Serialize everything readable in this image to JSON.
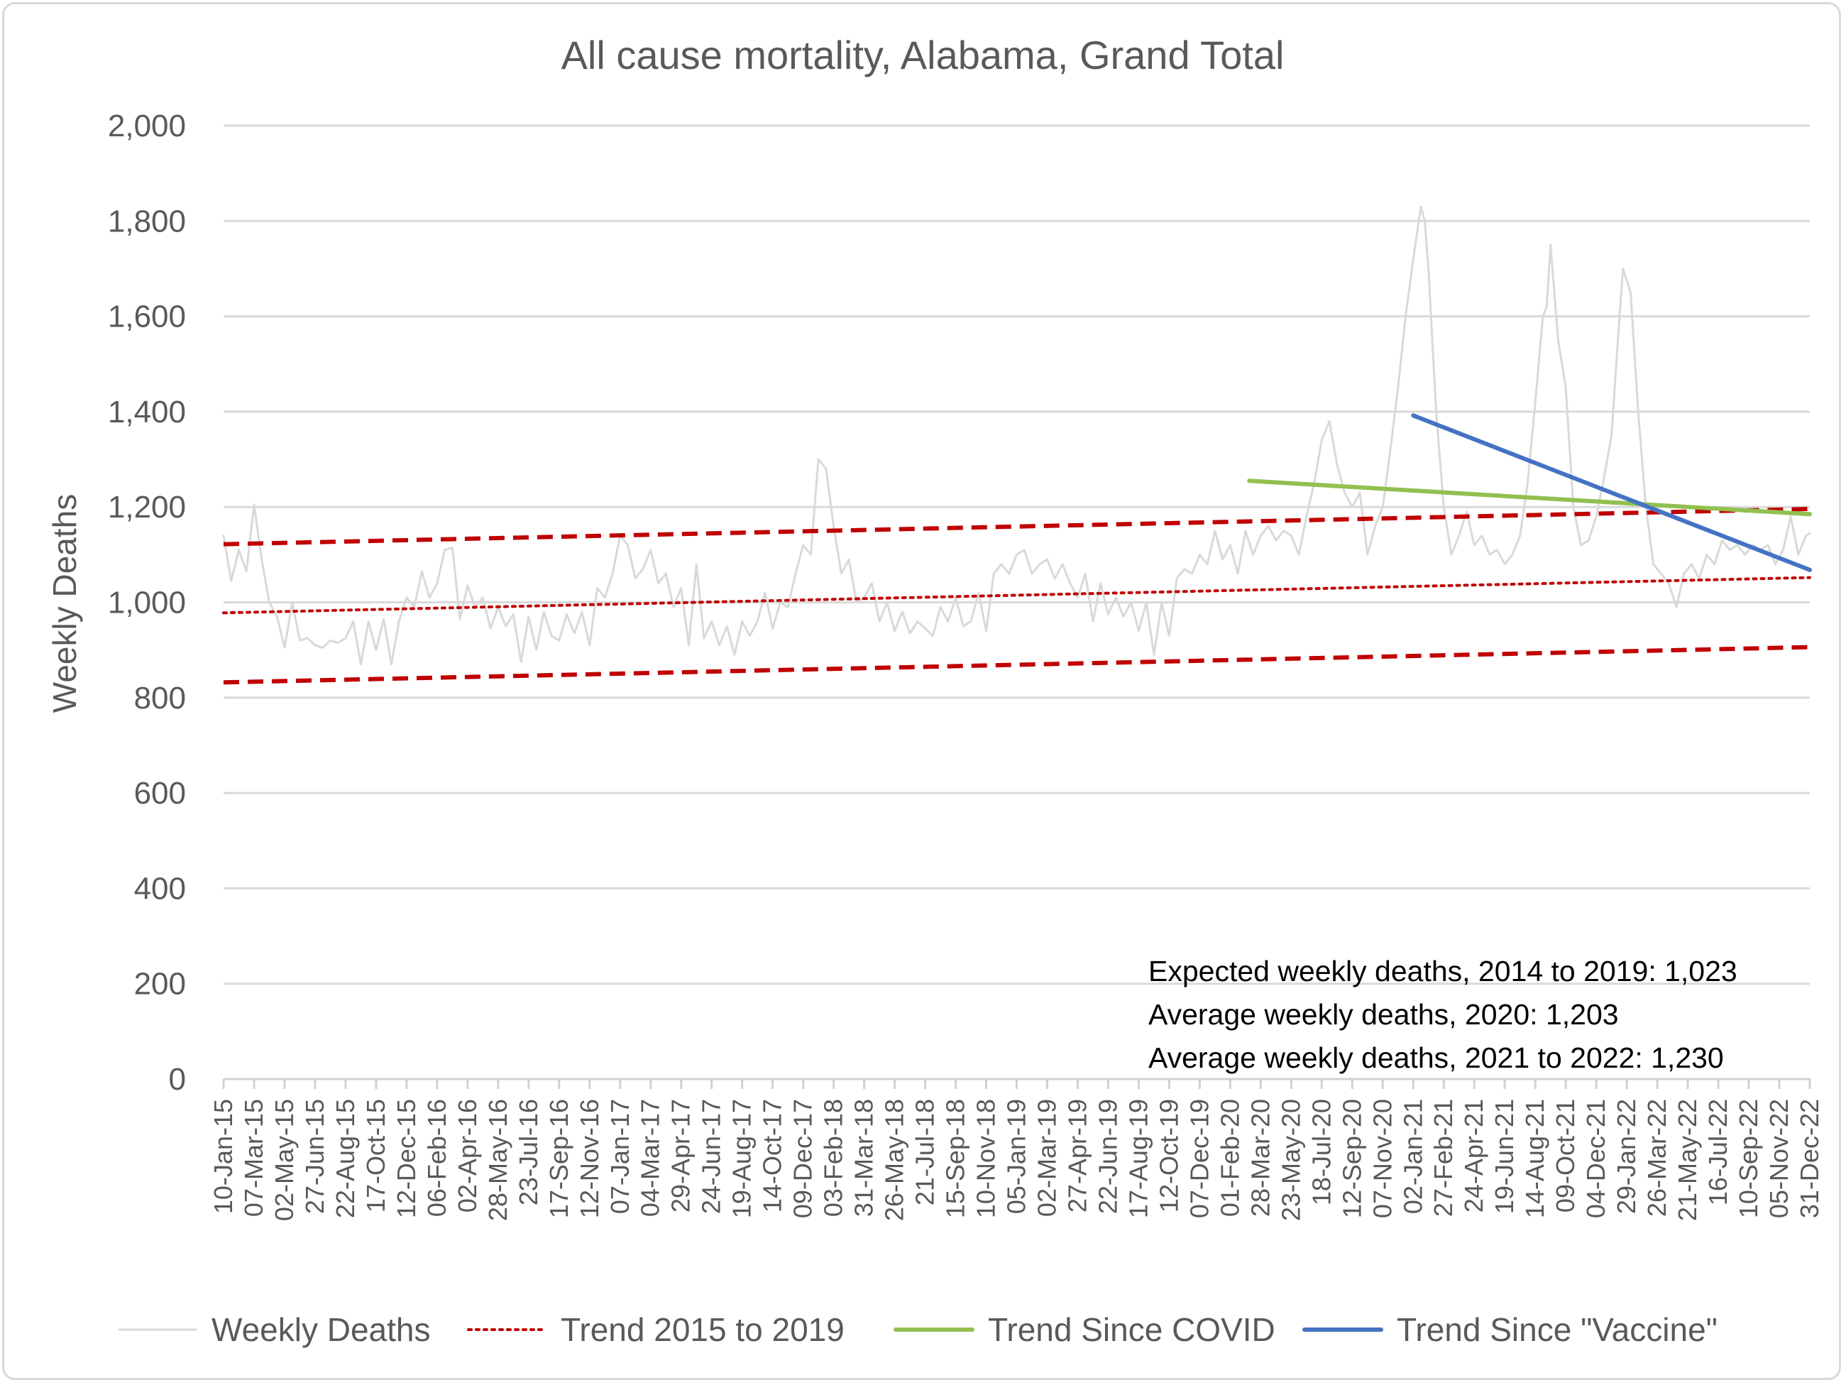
{
  "chart_data": {
    "type": "line",
    "title": "All cause mortality, Alabama, Grand Total",
    "xlabel": "",
    "ylabel": "Weekly Deaths",
    "ylim": [
      0,
      2000
    ],
    "y_ticks": [
      "0",
      "200",
      "400",
      "600",
      "800",
      "1,000",
      "1,200",
      "1,400",
      "1,600",
      "1,800",
      "2,000"
    ],
    "y_tick_values": [
      0,
      200,
      400,
      600,
      800,
      1000,
      1200,
      1400,
      1600,
      1800,
      2000
    ],
    "x_start": "2015-01-10",
    "x_end": "2022-12-31",
    "x_tick_labels": [
      "10-Jan-15",
      "07-Mar-15",
      "02-May-15",
      "27-Jun-15",
      "22-Aug-15",
      "17-Oct-15",
      "12-Dec-15",
      "06-Feb-16",
      "02-Apr-16",
      "28-May-16",
      "23-Jul-16",
      "17-Sep-16",
      "12-Nov-16",
      "07-Jan-17",
      "04-Mar-17",
      "29-Apr-17",
      "24-Jun-17",
      "19-Aug-17",
      "14-Oct-17",
      "09-Dec-17",
      "03-Feb-18",
      "31-Mar-18",
      "26-May-18",
      "21-Jul-18",
      "15-Sep-18",
      "10-Nov-18",
      "05-Jan-19",
      "02-Mar-19",
      "27-Apr-19",
      "22-Jun-19",
      "17-Aug-19",
      "12-Oct-19",
      "07-Dec-19",
      "01-Feb-20",
      "28-Mar-20",
      "23-May-20",
      "18-Jul-20",
      "12-Sep-20",
      "07-Nov-20",
      "02-Jan-21",
      "27-Feb-21",
      "24-Apr-21",
      "19-Jun-21",
      "14-Aug-21",
      "09-Oct-21",
      "04-Dec-21",
      "29-Jan-22",
      "26-Mar-22",
      "21-May-22",
      "16-Jul-22",
      "10-Sep-22",
      "05-Nov-22",
      "31-Dec-22"
    ],
    "grid": true,
    "legend_position": "bottom",
    "series": [
      {
        "name": "Weekly Deaths",
        "color": "#d9d9d9",
        "style": "solid",
        "points": [
          [
            "2015-01-10",
            1140
          ],
          [
            "2015-01-24",
            1045
          ],
          [
            "2015-02-07",
            1110
          ],
          [
            "2015-02-21",
            1065
          ],
          [
            "2015-03-07",
            1205
          ],
          [
            "2015-03-21",
            1090
          ],
          [
            "2015-04-04",
            1000
          ],
          [
            "2015-04-18",
            970
          ],
          [
            "2015-05-02",
            905
          ],
          [
            "2015-05-16",
            1000
          ],
          [
            "2015-05-30",
            920
          ],
          [
            "2015-06-13",
            925
          ],
          [
            "2015-06-27",
            910
          ],
          [
            "2015-07-11",
            905
          ],
          [
            "2015-07-25",
            920
          ],
          [
            "2015-08-08",
            915
          ],
          [
            "2015-08-22",
            925
          ],
          [
            "2015-09-05",
            960
          ],
          [
            "2015-09-19",
            870
          ],
          [
            "2015-10-03",
            960
          ],
          [
            "2015-10-17",
            900
          ],
          [
            "2015-10-31",
            965
          ],
          [
            "2015-11-14",
            870
          ],
          [
            "2015-11-28",
            960
          ],
          [
            "2015-12-12",
            1010
          ],
          [
            "2015-12-26",
            990
          ],
          [
            "2016-01-09",
            1065
          ],
          [
            "2016-01-23",
            1010
          ],
          [
            "2016-02-06",
            1040
          ],
          [
            "2016-02-20",
            1110
          ],
          [
            "2016-03-05",
            1115
          ],
          [
            "2016-03-19",
            965
          ],
          [
            "2016-04-02",
            1035
          ],
          [
            "2016-04-16",
            990
          ],
          [
            "2016-04-30",
            1010
          ],
          [
            "2016-05-14",
            945
          ],
          [
            "2016-05-28",
            990
          ],
          [
            "2016-06-11",
            950
          ],
          [
            "2016-06-25",
            975
          ],
          [
            "2016-07-09",
            875
          ],
          [
            "2016-07-23",
            970
          ],
          [
            "2016-08-06",
            900
          ],
          [
            "2016-08-20",
            980
          ],
          [
            "2016-09-03",
            930
          ],
          [
            "2016-09-17",
            920
          ],
          [
            "2016-10-01",
            975
          ],
          [
            "2016-10-15",
            935
          ],
          [
            "2016-10-29",
            980
          ],
          [
            "2016-11-12",
            910
          ],
          [
            "2016-11-26",
            1030
          ],
          [
            "2016-12-10",
            1010
          ],
          [
            "2016-12-24",
            1060
          ],
          [
            "2017-01-07",
            1140
          ],
          [
            "2017-01-21",
            1120
          ],
          [
            "2017-02-04",
            1050
          ],
          [
            "2017-02-18",
            1070
          ],
          [
            "2017-03-04",
            1110
          ],
          [
            "2017-03-18",
            1040
          ],
          [
            "2017-04-01",
            1060
          ],
          [
            "2017-04-15",
            990
          ],
          [
            "2017-04-29",
            1030
          ],
          [
            "2017-05-13",
            910
          ],
          [
            "2017-05-27",
            1080
          ],
          [
            "2017-06-10",
            925
          ],
          [
            "2017-06-24",
            960
          ],
          [
            "2017-07-08",
            910
          ],
          [
            "2017-07-22",
            950
          ],
          [
            "2017-08-05",
            890
          ],
          [
            "2017-08-19",
            960
          ],
          [
            "2017-09-02",
            930
          ],
          [
            "2017-09-16",
            960
          ],
          [
            "2017-09-30",
            1020
          ],
          [
            "2017-10-14",
            945
          ],
          [
            "2017-10-28",
            1000
          ],
          [
            "2017-11-11",
            990
          ],
          [
            "2017-11-25",
            1060
          ],
          [
            "2017-12-09",
            1120
          ],
          [
            "2017-12-23",
            1100
          ],
          [
            "2018-01-06",
            1300
          ],
          [
            "2018-01-20",
            1280
          ],
          [
            "2018-02-03",
            1160
          ],
          [
            "2018-02-17",
            1060
          ],
          [
            "2018-03-03",
            1090
          ],
          [
            "2018-03-17",
            1000
          ],
          [
            "2018-03-31",
            1010
          ],
          [
            "2018-04-14",
            1040
          ],
          [
            "2018-04-28",
            960
          ],
          [
            "2018-05-12",
            1000
          ],
          [
            "2018-05-26",
            940
          ],
          [
            "2018-06-09",
            980
          ],
          [
            "2018-06-23",
            935
          ],
          [
            "2018-07-07",
            960
          ],
          [
            "2018-07-21",
            945
          ],
          [
            "2018-08-04",
            930
          ],
          [
            "2018-08-18",
            990
          ],
          [
            "2018-09-01",
            960
          ],
          [
            "2018-09-15",
            1010
          ],
          [
            "2018-09-29",
            950
          ],
          [
            "2018-10-13",
            960
          ],
          [
            "2018-10-27",
            1020
          ],
          [
            "2018-11-10",
            940
          ],
          [
            "2018-11-24",
            1060
          ],
          [
            "2018-12-08",
            1080
          ],
          [
            "2018-12-22",
            1060
          ],
          [
            "2019-01-05",
            1100
          ],
          [
            "2019-01-19",
            1110
          ],
          [
            "2019-02-02",
            1060
          ],
          [
            "2019-02-16",
            1080
          ],
          [
            "2019-03-02",
            1090
          ],
          [
            "2019-03-16",
            1050
          ],
          [
            "2019-03-30",
            1080
          ],
          [
            "2019-04-13",
            1040
          ],
          [
            "2019-04-27",
            1010
          ],
          [
            "2019-05-11",
            1060
          ],
          [
            "2019-05-25",
            960
          ],
          [
            "2019-06-08",
            1040
          ],
          [
            "2019-06-22",
            975
          ],
          [
            "2019-07-06",
            1010
          ],
          [
            "2019-07-20",
            970
          ],
          [
            "2019-08-03",
            1000
          ],
          [
            "2019-08-17",
            940
          ],
          [
            "2019-08-31",
            1000
          ],
          [
            "2019-09-14",
            890
          ],
          [
            "2019-09-28",
            1000
          ],
          [
            "2019-10-12",
            930
          ],
          [
            "2019-10-26",
            1050
          ],
          [
            "2019-11-09",
            1070
          ],
          [
            "2019-11-23",
            1060
          ],
          [
            "2019-12-07",
            1100
          ],
          [
            "2019-12-21",
            1080
          ],
          [
            "2020-01-04",
            1150
          ],
          [
            "2020-01-18",
            1090
          ],
          [
            "2020-02-01",
            1120
          ],
          [
            "2020-02-15",
            1060
          ],
          [
            "2020-02-29",
            1150
          ],
          [
            "2020-03-14",
            1100
          ],
          [
            "2020-03-28",
            1140
          ],
          [
            "2020-04-11",
            1160
          ],
          [
            "2020-04-25",
            1130
          ],
          [
            "2020-05-09",
            1150
          ],
          [
            "2020-05-23",
            1140
          ],
          [
            "2020-06-06",
            1100
          ],
          [
            "2020-06-20",
            1180
          ],
          [
            "2020-07-04",
            1250
          ],
          [
            "2020-07-18",
            1340
          ],
          [
            "2020-08-01",
            1380
          ],
          [
            "2020-08-15",
            1290
          ],
          [
            "2020-08-29",
            1230
          ],
          [
            "2020-09-12",
            1200
          ],
          [
            "2020-09-26",
            1230
          ],
          [
            "2020-10-10",
            1100
          ],
          [
            "2020-10-24",
            1160
          ],
          [
            "2020-11-07",
            1200
          ],
          [
            "2020-11-21",
            1320
          ],
          [
            "2020-12-05",
            1450
          ],
          [
            "2020-12-19",
            1600
          ],
          [
            "2021-01-02",
            1720
          ],
          [
            "2021-01-16",
            1830
          ],
          [
            "2021-01-23",
            1800
          ],
          [
            "2021-01-30",
            1700
          ],
          [
            "2021-02-13",
            1400
          ],
          [
            "2021-02-27",
            1200
          ],
          [
            "2021-03-13",
            1100
          ],
          [
            "2021-03-27",
            1140
          ],
          [
            "2021-04-10",
            1190
          ],
          [
            "2021-04-24",
            1120
          ],
          [
            "2021-05-08",
            1140
          ],
          [
            "2021-05-22",
            1100
          ],
          [
            "2021-06-05",
            1110
          ],
          [
            "2021-06-19",
            1080
          ],
          [
            "2021-07-03",
            1100
          ],
          [
            "2021-07-17",
            1140
          ],
          [
            "2021-07-31",
            1250
          ],
          [
            "2021-08-14",
            1420
          ],
          [
            "2021-08-28",
            1600
          ],
          [
            "2021-09-04",
            1620
          ],
          [
            "2021-09-11",
            1750
          ],
          [
            "2021-09-25",
            1550
          ],
          [
            "2021-10-09",
            1450
          ],
          [
            "2021-10-23",
            1200
          ],
          [
            "2021-11-06",
            1120
          ],
          [
            "2021-11-20",
            1130
          ],
          [
            "2021-12-04",
            1180
          ],
          [
            "2021-12-18",
            1260
          ],
          [
            "2022-01-01",
            1350
          ],
          [
            "2022-01-15",
            1590
          ],
          [
            "2022-01-22",
            1700
          ],
          [
            "2022-02-05",
            1650
          ],
          [
            "2022-02-19",
            1400
          ],
          [
            "2022-03-05",
            1200
          ],
          [
            "2022-03-19",
            1080
          ],
          [
            "2022-04-02",
            1060
          ],
          [
            "2022-04-16",
            1040
          ],
          [
            "2022-04-30",
            990
          ],
          [
            "2022-05-14",
            1060
          ],
          [
            "2022-05-28",
            1080
          ],
          [
            "2022-06-11",
            1050
          ],
          [
            "2022-06-25",
            1100
          ],
          [
            "2022-07-09",
            1080
          ],
          [
            "2022-07-23",
            1130
          ],
          [
            "2022-08-06",
            1110
          ],
          [
            "2022-08-20",
            1120
          ],
          [
            "2022-09-03",
            1100
          ],
          [
            "2022-09-17",
            1120
          ],
          [
            "2022-10-01",
            1110
          ],
          [
            "2022-10-15",
            1120
          ],
          [
            "2022-10-29",
            1080
          ],
          [
            "2022-11-12",
            1110
          ],
          [
            "2022-11-26",
            1180
          ],
          [
            "2022-12-10",
            1100
          ],
          [
            "2022-12-24",
            1140
          ],
          [
            "2022-12-31",
            1145
          ]
        ]
      },
      {
        "name": "Trend 2015 to 2019",
        "color": "#c00000",
        "style": "dotted",
        "points": [
          [
            "2015-01-10",
            978
          ],
          [
            "2022-12-31",
            1052
          ]
        ]
      },
      {
        "name": "",
        "color": "#c00000",
        "style": "dashed",
        "points": [
          [
            "2015-01-10",
            1122
          ],
          [
            "2022-12-31",
            1196
          ]
        ]
      },
      {
        "name": "",
        "color": "#c00000",
        "style": "dashed",
        "points": [
          [
            "2015-01-10",
            832
          ],
          [
            "2022-12-31",
            906
          ]
        ]
      },
      {
        "name": "Trend Since COVID",
        "color": "#92c050",
        "style": "solid",
        "points": [
          [
            "2020-03-07",
            1255
          ],
          [
            "2022-12-31",
            1185
          ]
        ]
      },
      {
        "name": "Trend Since \"Vaccine\"",
        "color": "#4472c4",
        "style": "solid",
        "points": [
          [
            "2021-01-02",
            1392
          ],
          [
            "2022-12-31",
            1068
          ]
        ]
      }
    ],
    "annotations": [
      "Expected weekly deaths, 2014 to 2019: 1,023",
      "Average weekly deaths, 2020: 1,203",
      "Average weekly deaths, 2021 to 2022: 1,230"
    ]
  }
}
